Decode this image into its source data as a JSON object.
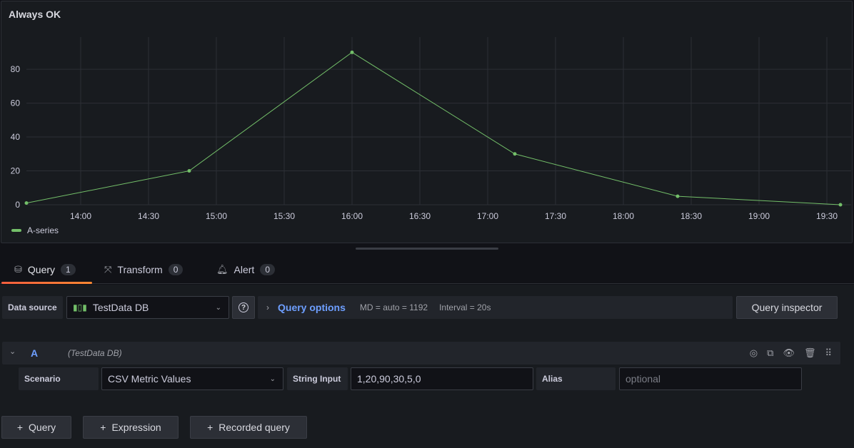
{
  "panel": {
    "title": "Always OK",
    "legend": "A-series"
  },
  "chart_data": {
    "type": "line",
    "title": "Always OK",
    "x": [
      "13:36",
      "14:48",
      "16:00",
      "17:12",
      "18:24",
      "19:36"
    ],
    "series": [
      {
        "name": "A-series",
        "values": [
          1,
          20,
          90,
          30,
          5,
          0
        ],
        "color": "#73bf69"
      }
    ],
    "xticks": [
      "14:00",
      "14:30",
      "15:00",
      "15:30",
      "16:00",
      "16:30",
      "17:00",
      "17:30",
      "18:00",
      "18:30",
      "19:00",
      "19:30"
    ],
    "yticks": [
      0,
      20,
      40,
      60,
      80
    ],
    "ylim": [
      0,
      99
    ],
    "xlim": [
      "13:36",
      "19:36"
    ],
    "grid": true,
    "legend": "bottom-left"
  },
  "tabs": [
    {
      "label": "Query",
      "count": "1",
      "icon": "database-icon"
    },
    {
      "label": "Transform",
      "count": "0",
      "icon": "transform-icon"
    },
    {
      "label": "Alert",
      "count": "0",
      "icon": "bell-icon"
    }
  ],
  "datasource": {
    "label": "Data source",
    "value": "TestData DB",
    "help": "?"
  },
  "query_options": {
    "label": "Query options",
    "md": "MD = auto = 1192",
    "interval": "Interval = 20s"
  },
  "query_inspector": "Query inspector",
  "query": {
    "ref": "A",
    "ds": "(TestData DB)",
    "scenario_label": "Scenario",
    "scenario": "CSV Metric Values",
    "string_label": "String Input",
    "string_value": "1,20,90,30,5,0",
    "alias_label": "Alias",
    "alias_placeholder": "optional"
  },
  "add_buttons": [
    "Query",
    "Expression",
    "Recorded query"
  ]
}
